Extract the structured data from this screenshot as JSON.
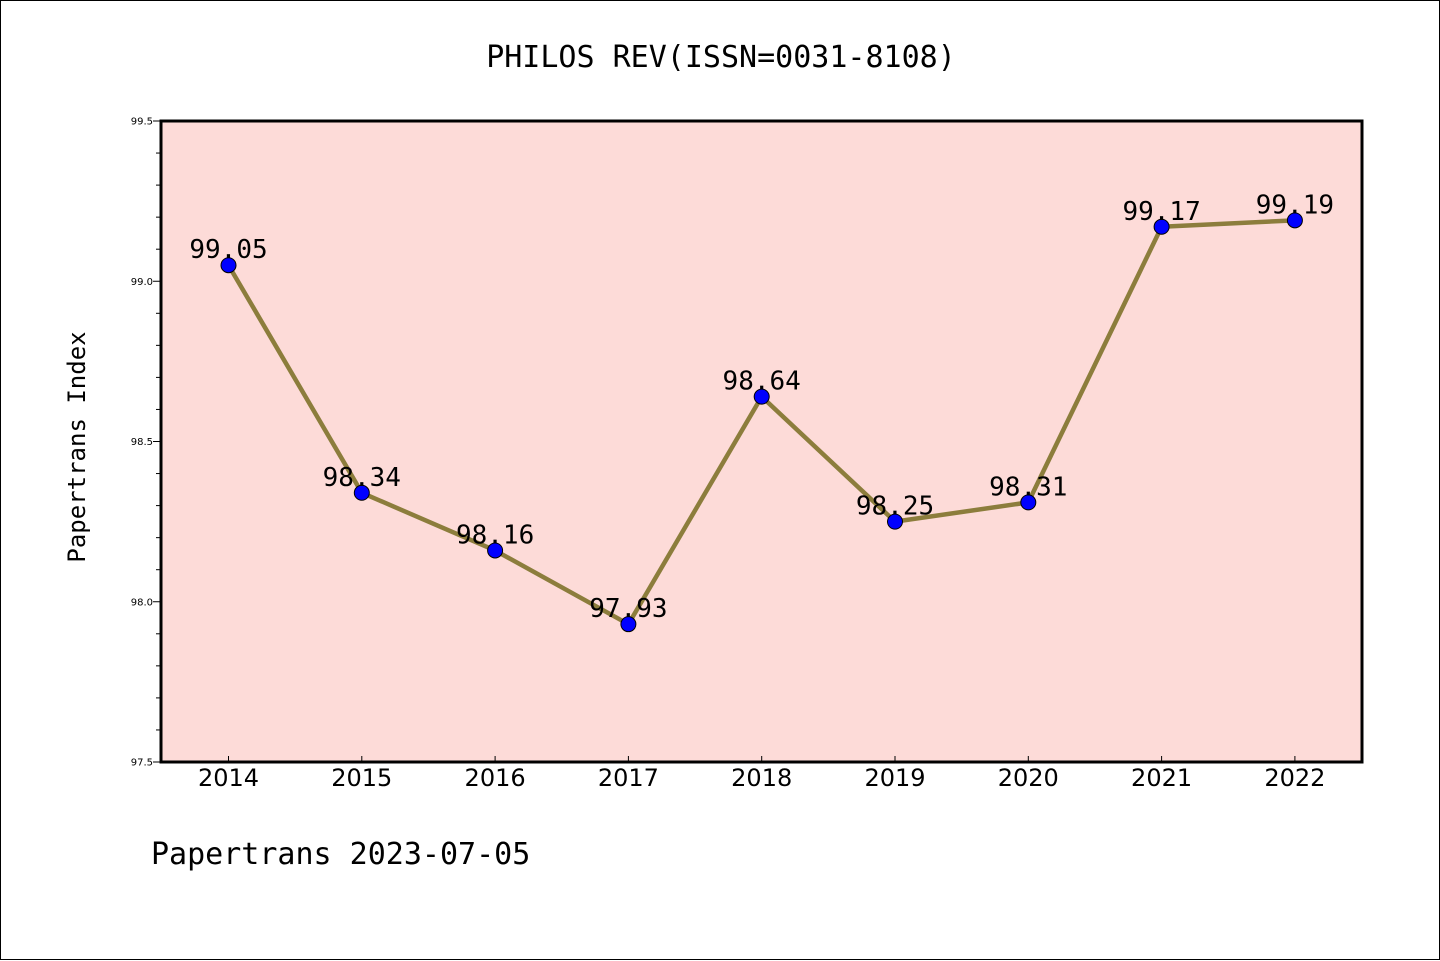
{
  "chart_data": {
    "type": "line",
    "title": "PHILOS REV(ISSN=0031-8108)",
    "xlabel": "",
    "ylabel": "Papertrans Index",
    "categories": [
      "2014",
      "2015",
      "2016",
      "2017",
      "2018",
      "2019",
      "2020",
      "2021",
      "2022"
    ],
    "values": [
      99.05,
      98.34,
      98.16,
      97.93,
      98.64,
      98.25,
      98.31,
      99.17,
      99.19
    ],
    "data_labels": [
      "99.05",
      "98.34",
      "98.16",
      "97.93",
      "98.64",
      "98.25",
      "98.31",
      "99.17",
      "99.19"
    ],
    "ylim": [
      97.5,
      99.5
    ],
    "yticks": [
      "97.5",
      "98.0",
      "98.5",
      "99.0",
      "99.5"
    ],
    "grid": false,
    "legend": "none",
    "colors": {
      "plot_background": "#fddbd8",
      "line": "#8c7d3c",
      "marker": "#0000ff"
    }
  },
  "footer": "Papertrans 2023-07-05"
}
